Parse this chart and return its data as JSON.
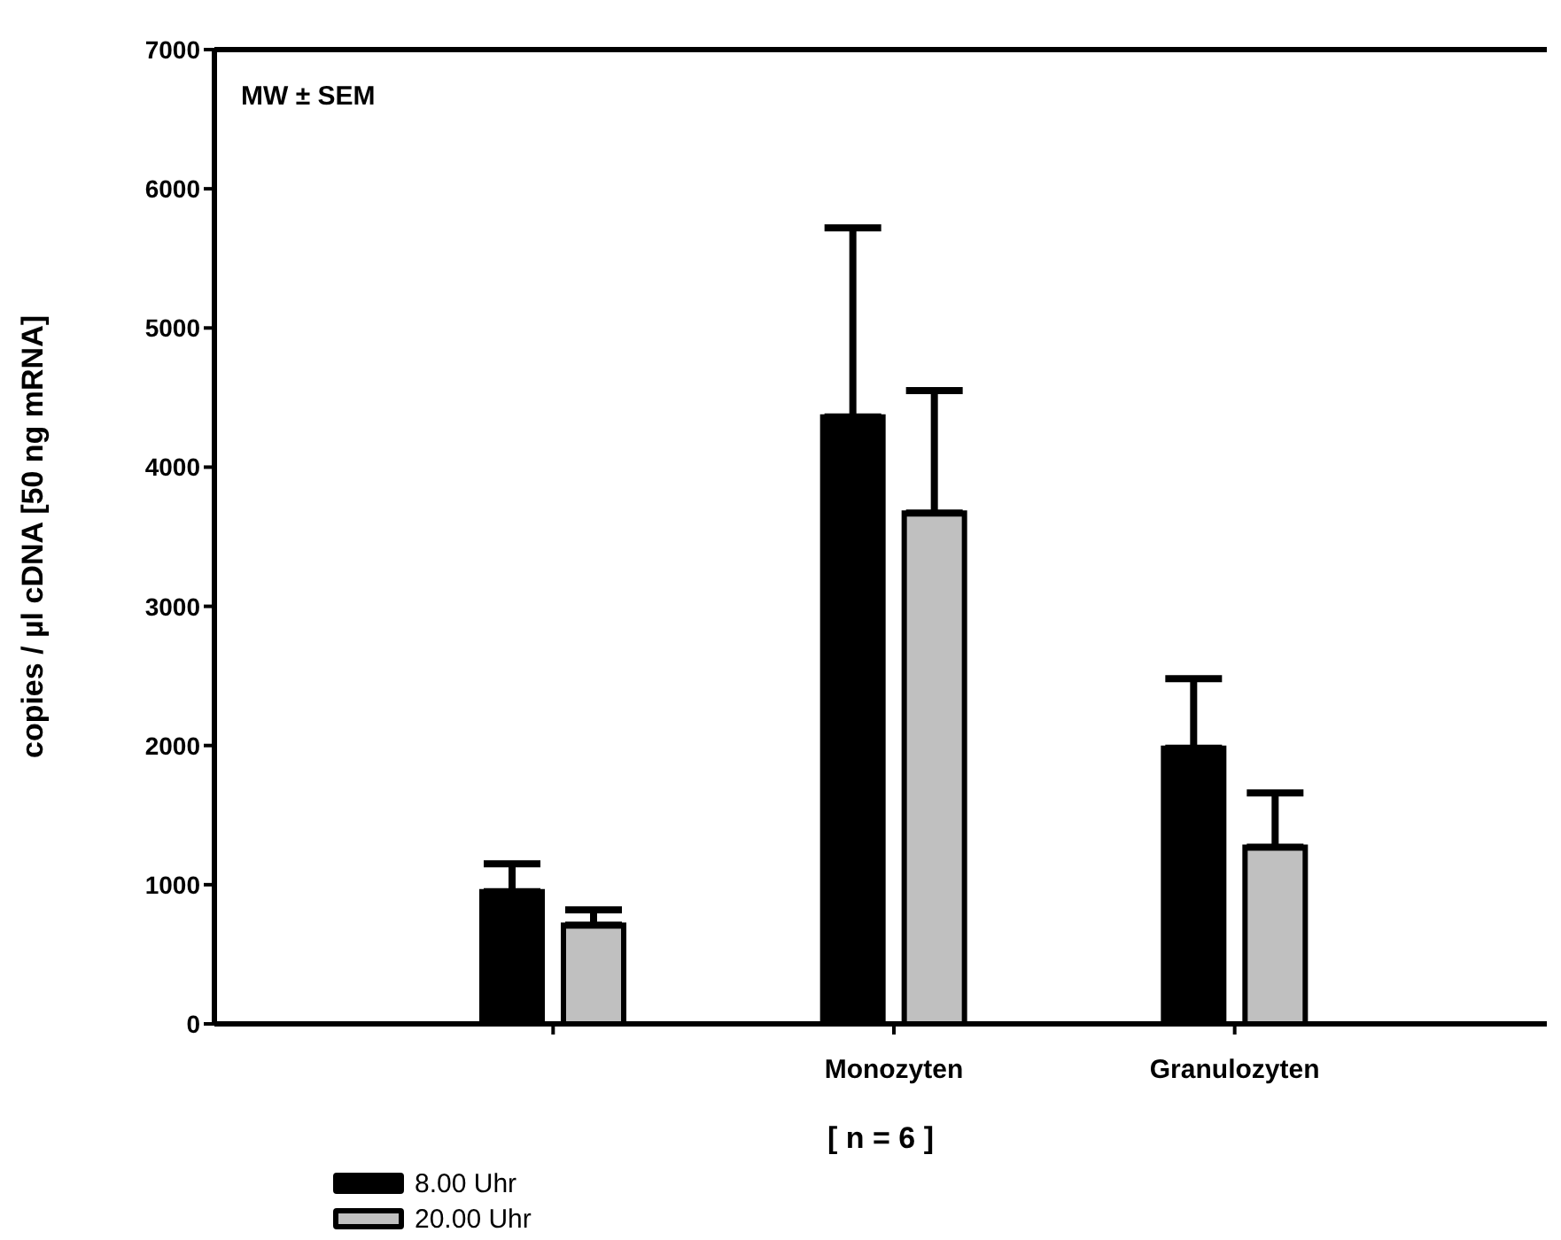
{
  "chart_data": {
    "type": "bar",
    "xlabel": "[ n = 6 ]",
    "ylabel": "copies / µl  cDNA [50 ng mRNA]",
    "categories": [
      null,
      "Monozyten",
      "Granulozyten"
    ],
    "series": [
      {
        "name": "8.00 Uhr",
        "color": "#000000",
        "values": [
          950,
          4360,
          1980
        ],
        "errors": [
          [
            950,
            1150
          ],
          [
            4360,
            5720
          ],
          [
            1980,
            2480
          ]
        ]
      },
      {
        "name": "20.00 Uhr",
        "color": "#c0c0c0",
        "values": [
          710,
          3670,
          1270
        ],
        "errors": [
          [
            710,
            820
          ],
          [
            3670,
            4550
          ],
          [
            1270,
            1660
          ]
        ]
      }
    ],
    "ylim": [
      0,
      7000
    ],
    "yticks": [
      0,
      1000,
      2000,
      3000,
      4000,
      5000,
      6000,
      7000
    ],
    "legend": "bottom left",
    "annotations": [
      "MW ± SEM"
    ]
  }
}
